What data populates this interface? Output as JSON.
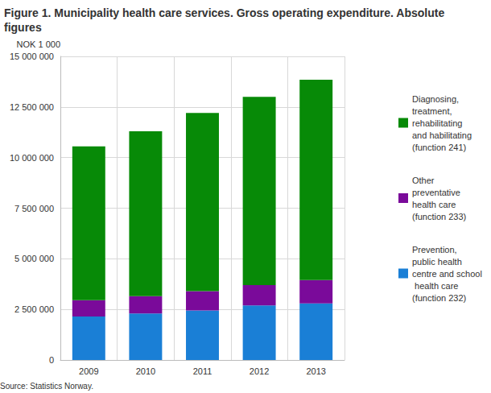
{
  "chart_data": {
    "type": "bar",
    "title": "Figure 1. Municipality health care services. Gross operating expenditure. Absolute figures",
    "y_label": "NOK 1 000",
    "source": "Source: Statistics Norway.",
    "categories": [
      "2009",
      "2010",
      "2011",
      "2012",
      "2013"
    ],
    "stacked": true,
    "grid": true,
    "legend": "right",
    "series": [
      {
        "name": "Prevention, public health centre and school health care (function 232)",
        "color": "#1a7fd6",
        "values": [
          2150000,
          2300000,
          2450000,
          2700000,
          2800000
        ]
      },
      {
        "name": "Other preventative health care (function 233)",
        "color": "#7a0a9a",
        "values": [
          800000,
          850000,
          950000,
          1000000,
          1150000
        ]
      },
      {
        "name": "Diagnosing, treatment, rehabilitating and habilitating (function 241)",
        "color": "#078a07",
        "values": [
          7600000,
          8150000,
          8800000,
          9300000,
          9900000
        ]
      }
    ],
    "ylim": [
      0,
      15000000
    ],
    "yticks": [
      0,
      {
        "value": 2500000,
        "label": "2 500 000"
      },
      {
        "value": 5000000,
        "label": "5 000 000"
      },
      {
        "value": 7500000,
        "label": "7 500 000"
      },
      {
        "value": 10000000,
        "label": "10 000 000"
      },
      {
        "value": 12500000,
        "label": "12 500 000"
      },
      {
        "value": 15000000,
        "label": "15 000 000"
      }
    ]
  }
}
